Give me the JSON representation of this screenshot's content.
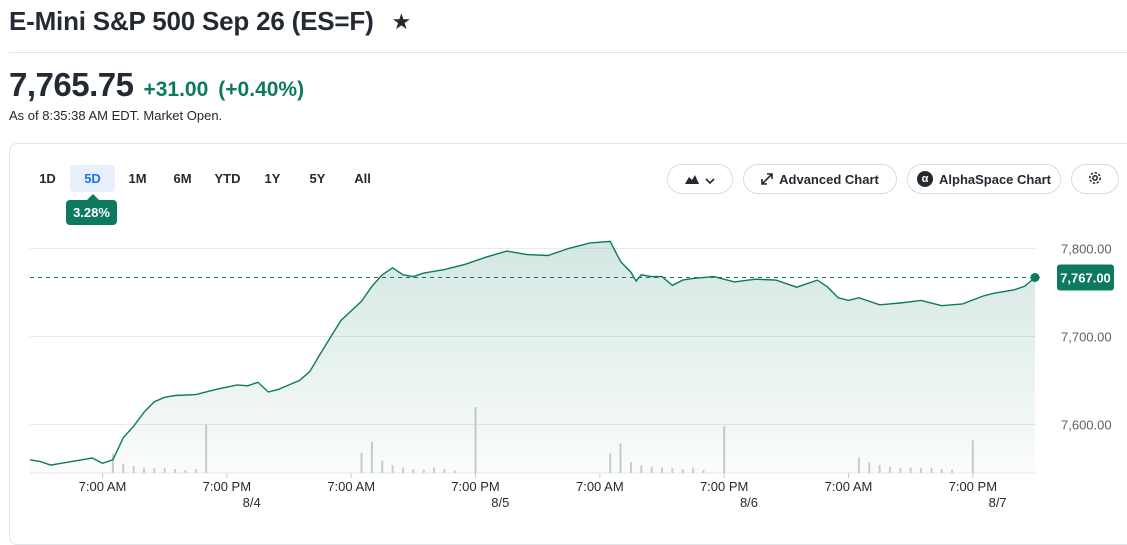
{
  "header": {
    "title": "E-Mini S&P 500 Sep 26 (ES=F)",
    "price": "7,765.75",
    "change": "+31.00",
    "change_pct": "(+0.40%)",
    "as_of": "As of 8:35:38 AM EDT. Market Open."
  },
  "range_tabs": [
    "1D",
    "5D",
    "1M",
    "6M",
    "YTD",
    "1Y",
    "5Y",
    "All"
  ],
  "active_range": "5D",
  "range_change_badge": "3.28%",
  "toolbar": {
    "advanced_chart": "Advanced Chart",
    "alphaspace_chart": "AlphaSpace Chart"
  },
  "colors": {
    "accent": "#0d7a5f",
    "line": "#0d7a5f",
    "fill": "#d7ede6",
    "active_tab": "#1a73e8"
  },
  "icons": [
    "star-icon",
    "mountain-chart-icon",
    "chevron-down-icon",
    "expand-icon",
    "alphaspace-icon",
    "gear-icon"
  ],
  "chart_data": {
    "type": "area",
    "title": "",
    "xlabel": "",
    "ylabel": "",
    "ylim": [
      7545,
      7830
    ],
    "y_ticks": [
      "7,800.00",
      "7,700.00",
      "7,600.00"
    ],
    "y_tick_values": [
      7800,
      7700,
      7600
    ],
    "x_time_labels": [
      "7:00 AM",
      "7:00 PM",
      "7:00 AM",
      "7:00 PM",
      "7:00 AM",
      "7:00 PM",
      "7:00 AM",
      "7:00 PM",
      "7:00 AM"
    ],
    "x_date_labels": [
      "8/4",
      "8/5",
      "8/6",
      "8/7"
    ],
    "reference_price": 7767,
    "reference_label": "7,767.00",
    "x_range_hours": [
      0,
      97
    ],
    "time_tick_hours": [
      7,
      19,
      31,
      43,
      55,
      67,
      79,
      91,
      103
    ],
    "date_tick_hours": [
      24,
      48,
      72,
      96
    ],
    "series": [
      {
        "x_hours": [
          0,
          1,
          2,
          3,
          4,
          5,
          6,
          7,
          8,
          9,
          10,
          11,
          12,
          13,
          14,
          16,
          18,
          20,
          21,
          22,
          23,
          24,
          25,
          26,
          27,
          28,
          30,
          32,
          33,
          34,
          35,
          36,
          37,
          38,
          40,
          42,
          44,
          46,
          48,
          50,
          52,
          54,
          56,
          57,
          58,
          58.5,
          59,
          60,
          61,
          62,
          63,
          64,
          66,
          68,
          70,
          72,
          74,
          76,
          77,
          78,
          79,
          80,
          82,
          84,
          86,
          88,
          90,
          92,
          93,
          94,
          95,
          96,
          97
        ],
        "values": [
          7560,
          7558,
          7554,
          7556,
          7558,
          7560,
          7562,
          7556,
          7560,
          7585,
          7598,
          7614,
          7626,
          7631,
          7633,
          7634,
          7640,
          7645,
          7644,
          7648,
          7637,
          7640,
          7645,
          7650,
          7660,
          7680,
          7718,
          7740,
          7757,
          7770,
          7778,
          7770,
          7768,
          7772,
          7776,
          7782,
          7790,
          7797,
          7793,
          7792,
          7800,
          7806,
          7808,
          7785,
          7773,
          7763,
          7770,
          7768,
          7768,
          7758,
          7764,
          7766,
          7768,
          7762,
          7765,
          7764,
          7756,
          7764,
          7756,
          7744,
          7741,
          7744,
          7736,
          7738,
          7741,
          7735,
          7737,
          7746,
          7749,
          7751,
          7753,
          7757,
          7767
        ]
      }
    ],
    "volume": {
      "x_hours": [
        8,
        9,
        10,
        11,
        12,
        13,
        14,
        15,
        16,
        17,
        32,
        33,
        34,
        35,
        36,
        37,
        38,
        39,
        40,
        41,
        43,
        56,
        57,
        58,
        59,
        60,
        61,
        62,
        63,
        64,
        65,
        67,
        80,
        81,
        82,
        83,
        84,
        85,
        86,
        87,
        88,
        89,
        91
      ],
      "values": [
        25,
        12,
        9,
        7,
        6,
        6,
        5,
        4,
        5,
        62,
        26,
        40,
        16,
        10,
        7,
        5,
        4,
        7,
        5,
        3,
        85,
        25,
        38,
        14,
        10,
        8,
        7,
        6,
        5,
        7,
        4,
        60,
        20,
        14,
        10,
        8,
        6,
        7,
        6,
        7,
        5,
        4,
        42
      ]
    }
  }
}
